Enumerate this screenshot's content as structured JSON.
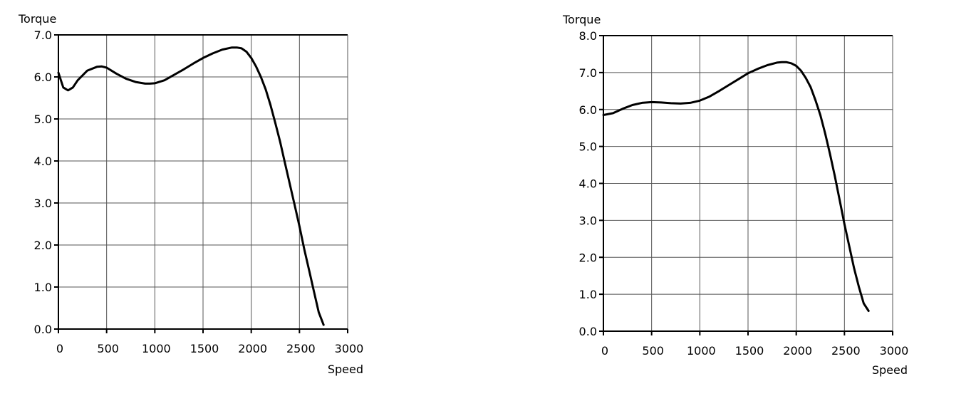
{
  "chart_data": [
    {
      "type": "line",
      "xlabel": "Speed",
      "ylabel": "Torque",
      "xlim": [
        0,
        3000
      ],
      "ylim": [
        0,
        7
      ],
      "xticks": [
        "0",
        "500",
        "1000",
        "1500",
        "2000",
        "2500",
        "3000"
      ],
      "yticks": [
        "0.0",
        "1.0",
        "2.0",
        "3.0",
        "4.0",
        "5.0",
        "6.0",
        "7.0"
      ],
      "grid": true,
      "series": [
        {
          "x": [
            0,
            50,
            100,
            150,
            200,
            300,
            400,
            450,
            500,
            600,
            700,
            800,
            900,
            950,
            1000,
            1100,
            1200,
            1300,
            1400,
            1500,
            1600,
            1700,
            1800,
            1850,
            1900,
            1950,
            2000,
            2050,
            2100,
            2150,
            2200,
            2250,
            2300,
            2350,
            2400,
            2450,
            2500,
            2550,
            2600,
            2650,
            2700,
            2750
          ],
          "y": [
            6.1,
            5.75,
            5.68,
            5.75,
            5.92,
            6.15,
            6.24,
            6.25,
            6.22,
            6.08,
            5.96,
            5.88,
            5.84,
            5.84,
            5.85,
            5.92,
            6.05,
            6.18,
            6.32,
            6.45,
            6.56,
            6.65,
            6.7,
            6.7,
            6.68,
            6.6,
            6.45,
            6.25,
            6.0,
            5.7,
            5.33,
            4.9,
            4.45,
            3.95,
            3.45,
            2.95,
            2.45,
            1.9,
            1.4,
            0.9,
            0.4,
            0.1
          ]
        }
      ]
    },
    {
      "type": "line",
      "xlabel": "Speed",
      "ylabel": "Torque",
      "xlim": [
        0,
        3000
      ],
      "ylim": [
        0,
        8
      ],
      "xticks": [
        "0",
        "500",
        "1000",
        "1500",
        "2000",
        "2500",
        "3000"
      ],
      "yticks": [
        "0.0",
        "1.0",
        "2.0",
        "3.0",
        "4.0",
        "5.0",
        "6.0",
        "7.0",
        "8.0"
      ],
      "grid": true,
      "series": [
        {
          "x": [
            0,
            100,
            200,
            300,
            400,
            500,
            600,
            700,
            800,
            900,
            1000,
            1100,
            1200,
            1300,
            1400,
            1500,
            1600,
            1700,
            1800,
            1850,
            1900,
            1950,
            2000,
            2050,
            2100,
            2150,
            2200,
            2250,
            2300,
            2350,
            2400,
            2450,
            2500,
            2550,
            2600,
            2650,
            2700,
            2750
          ],
          "y": [
            5.85,
            5.9,
            6.02,
            6.12,
            6.18,
            6.2,
            6.19,
            6.17,
            6.16,
            6.18,
            6.24,
            6.35,
            6.5,
            6.66,
            6.82,
            6.98,
            7.1,
            7.2,
            7.27,
            7.28,
            7.28,
            7.25,
            7.18,
            7.05,
            6.85,
            6.6,
            6.25,
            5.85,
            5.35,
            4.8,
            4.2,
            3.55,
            2.9,
            2.3,
            1.7,
            1.2,
            0.75,
            0.55
          ]
        }
      ]
    }
  ]
}
